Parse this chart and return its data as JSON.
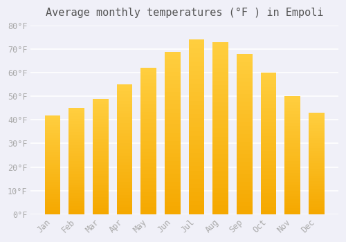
{
  "title": "Average monthly temperatures (°F ) in Empoli",
  "months": [
    "Jan",
    "Feb",
    "Mar",
    "Apr",
    "May",
    "Jun",
    "Jul",
    "Aug",
    "Sep",
    "Oct",
    "Nov",
    "Dec"
  ],
  "values": [
    42,
    45,
    49,
    55,
    62,
    69,
    74,
    73,
    68,
    60,
    50,
    43
  ],
  "bar_color_top": "#FFC020",
  "bar_color_bottom": "#FFB300",
  "ylim": [
    0,
    80
  ],
  "yticks": [
    0,
    10,
    20,
    30,
    40,
    50,
    60,
    70,
    80
  ],
  "ytick_labels": [
    "0°F",
    "10°F",
    "20°F",
    "30°F",
    "40°F",
    "50°F",
    "60°F",
    "70°F",
    "80°F"
  ],
  "background_color": "#f0f0f8",
  "grid_color": "#ffffff",
  "title_fontsize": 11,
  "tick_fontsize": 8.5,
  "font_family": "monospace"
}
